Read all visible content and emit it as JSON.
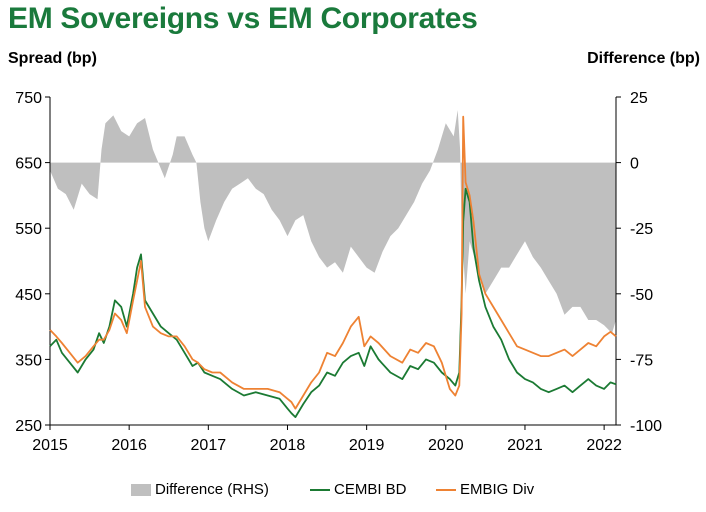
{
  "title": "EM Sovereigns vs EM Corporates",
  "colors": {
    "title": "#1a7a3c",
    "difference": "#bfbfbf",
    "cembi": "#1b7a33",
    "embig": "#ee8233"
  },
  "chart_data": {
    "type": "line",
    "title": "EM Sovereigns vs EM Corporates",
    "ylabel": "Spread (bp)",
    "y2label": "Difference (bp)",
    "ylim": [
      250,
      750
    ],
    "y2lim": [
      -100,
      25
    ],
    "yticks": [
      "750",
      "650",
      "550",
      "450",
      "350",
      "250"
    ],
    "y2ticks": [
      "25",
      "0",
      "-25",
      "-50",
      "-75",
      "-100"
    ],
    "xlim": [
      2015.0,
      2022.15
    ],
    "xticks": [
      "2015",
      "2016",
      "2017",
      "2018",
      "2019",
      "2020",
      "2021",
      "2022"
    ],
    "legend": [
      "Difference (RHS)",
      "CEMBI BD",
      "EMBIG Div"
    ],
    "series": [
      {
        "name": "CEMBI BD",
        "x": [
          2015.0,
          2015.08,
          2015.15,
          2015.25,
          2015.35,
          2015.45,
          2015.55,
          2015.62,
          2015.68,
          2015.75,
          2015.82,
          2015.9,
          2015.97,
          2016.05,
          2016.1,
          2016.15,
          2016.2,
          2016.3,
          2016.4,
          2016.5,
          2016.6,
          2016.7,
          2016.8,
          2016.87,
          2016.95,
          2017.05,
          2017.15,
          2017.3,
          2017.45,
          2017.6,
          2017.75,
          2017.9,
          2018.0,
          2018.05,
          2018.1,
          2018.2,
          2018.3,
          2018.4,
          2018.5,
          2018.6,
          2018.7,
          2018.8,
          2018.9,
          2018.97,
          2019.05,
          2019.15,
          2019.3,
          2019.45,
          2019.55,
          2019.65,
          2019.75,
          2019.85,
          2019.95,
          2020.05,
          2020.12,
          2020.17,
          2020.2,
          2020.22,
          2020.25,
          2020.3,
          2020.35,
          2020.42,
          2020.5,
          2020.6,
          2020.7,
          2020.8,
          2020.9,
          2021.0,
          2021.1,
          2021.2,
          2021.3,
          2021.4,
          2021.5,
          2021.6,
          2021.7,
          2021.8,
          2021.9,
          2022.0,
          2022.08,
          2022.15
        ],
        "values": [
          370,
          380,
          360,
          345,
          330,
          350,
          365,
          390,
          375,
          400,
          440,
          430,
          400,
          450,
          490,
          510,
          440,
          420,
          400,
          390,
          380,
          360,
          340,
          345,
          330,
          325,
          320,
          305,
          295,
          300,
          295,
          290,
          275,
          268,
          262,
          282,
          300,
          310,
          330,
          325,
          345,
          355,
          360,
          340,
          370,
          350,
          330,
          320,
          340,
          335,
          350,
          345,
          330,
          320,
          310,
          330,
          440,
          560,
          610,
          590,
          520,
          470,
          430,
          400,
          380,
          350,
          330,
          320,
          315,
          305,
          300,
          305,
          310,
          300,
          310,
          320,
          310,
          305,
          315,
          312
        ]
      },
      {
        "name": "EMBIG Div",
        "x": [
          2015.0,
          2015.08,
          2015.15,
          2015.25,
          2015.35,
          2015.45,
          2015.55,
          2015.62,
          2015.68,
          2015.75,
          2015.82,
          2015.9,
          2015.97,
          2016.05,
          2016.1,
          2016.15,
          2016.2,
          2016.3,
          2016.4,
          2016.5,
          2016.6,
          2016.7,
          2016.8,
          2016.87,
          2016.95,
          2017.05,
          2017.15,
          2017.3,
          2017.45,
          2017.6,
          2017.75,
          2017.9,
          2018.0,
          2018.05,
          2018.1,
          2018.2,
          2018.3,
          2018.4,
          2018.5,
          2018.6,
          2018.7,
          2018.8,
          2018.9,
          2018.97,
          2019.05,
          2019.15,
          2019.3,
          2019.45,
          2019.55,
          2019.65,
          2019.75,
          2019.85,
          2019.95,
          2020.05,
          2020.12,
          2020.17,
          2020.2,
          2020.22,
          2020.25,
          2020.3,
          2020.35,
          2020.42,
          2020.5,
          2020.6,
          2020.7,
          2020.8,
          2020.9,
          2021.0,
          2021.1,
          2021.2,
          2021.3,
          2021.4,
          2021.5,
          2021.6,
          2021.7,
          2021.8,
          2021.9,
          2022.0,
          2022.08,
          2022.15
        ],
        "values": [
          395,
          385,
          375,
          360,
          345,
          355,
          370,
          380,
          380,
          395,
          420,
          410,
          390,
          440,
          470,
          500,
          430,
          400,
          390,
          385,
          385,
          370,
          350,
          345,
          335,
          330,
          330,
          315,
          305,
          305,
          305,
          300,
          290,
          285,
          275,
          295,
          315,
          330,
          360,
          355,
          375,
          400,
          415,
          370,
          385,
          375,
          355,
          345,
          365,
          360,
          375,
          370,
          345,
          305,
          295,
          310,
          420,
          720,
          620,
          600,
          560,
          480,
          450,
          430,
          410,
          390,
          370,
          365,
          360,
          355,
          355,
          360,
          365,
          355,
          365,
          375,
          370,
          385,
          392,
          385
        ]
      },
      {
        "name": "Difference (RHS)",
        "x": [
          2015.0,
          2015.1,
          2015.2,
          2015.3,
          2015.4,
          2015.5,
          2015.6,
          2015.65,
          2015.7,
          2015.8,
          2015.9,
          2016.0,
          2016.1,
          2016.2,
          2016.3,
          2016.45,
          2016.55,
          2016.6,
          2016.7,
          2016.8,
          2016.85,
          2016.9,
          2016.95,
          2017.0,
          2017.1,
          2017.2,
          2017.3,
          2017.4,
          2017.5,
          2017.6,
          2017.7,
          2017.8,
          2017.9,
          2018.0,
          2018.1,
          2018.2,
          2018.3,
          2018.4,
          2018.5,
          2018.6,
          2018.7,
          2018.8,
          2018.9,
          2019.0,
          2019.1,
          2019.2,
          2019.3,
          2019.4,
          2019.5,
          2019.6,
          2019.7,
          2019.8,
          2019.9,
          2020.0,
          2020.1,
          2020.15,
          2020.18,
          2020.2,
          2020.25,
          2020.3,
          2020.4,
          2020.5,
          2020.6,
          2020.7,
          2020.8,
          2020.9,
          2021.0,
          2021.1,
          2021.2,
          2021.3,
          2021.4,
          2021.5,
          2021.6,
          2021.7,
          2021.8,
          2021.9,
          2022.0,
          2022.1,
          2022.15
        ],
        "values": [
          -3,
          -10,
          -12,
          -18,
          -8,
          -12,
          -14,
          5,
          15,
          18,
          12,
          10,
          15,
          17,
          5,
          -6,
          3,
          10,
          10,
          3,
          0,
          -15,
          -25,
          -30,
          -22,
          -15,
          -10,
          -8,
          -6,
          -10,
          -12,
          -18,
          -22,
          -28,
          -22,
          -20,
          -30,
          -36,
          -40,
          -38,
          -42,
          -32,
          -36,
          -40,
          -42,
          -34,
          -28,
          -25,
          -20,
          -15,
          -8,
          -3,
          5,
          15,
          10,
          20,
          5,
          -25,
          -50,
          -30,
          -40,
          -50,
          -45,
          -40,
          -40,
          -35,
          -30,
          -36,
          -40,
          -45,
          -50,
          -58,
          -55,
          -55,
          -60,
          -60,
          -62,
          -65,
          -60
        ]
      }
    ]
  },
  "legend": {
    "difference": "Difference (RHS)",
    "cembi": "CEMBI BD",
    "embig": "EMBIG Div"
  }
}
